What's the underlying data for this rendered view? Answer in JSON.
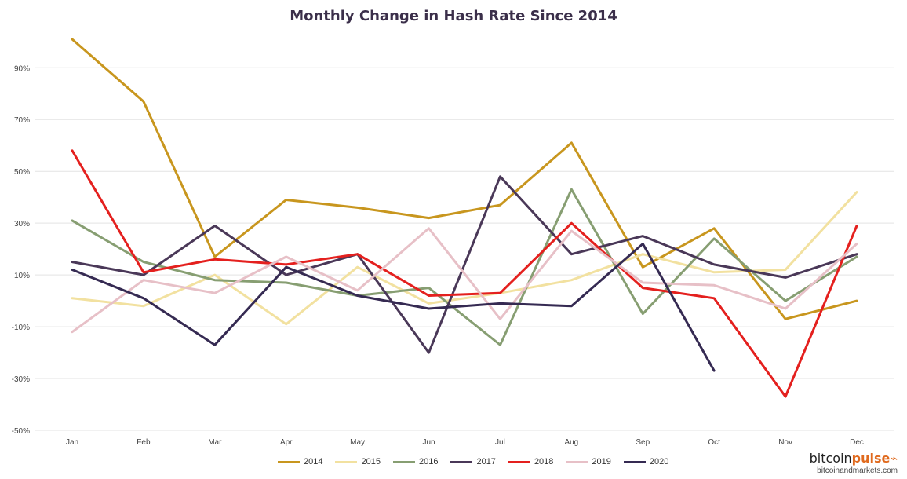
{
  "chart_data": {
    "type": "line",
    "title": "Monthly Change in Hash Rate Since 2014",
    "categories": [
      "Jan",
      "Feb",
      "Mar",
      "Apr",
      "May",
      "Jun",
      "Jul",
      "Aug",
      "Sep",
      "Oct",
      "Nov",
      "Dec"
    ],
    "yticks": [
      -50,
      -30,
      -10,
      10,
      30,
      50,
      70,
      90
    ],
    "ytick_labels": [
      "-50%",
      "-30%",
      "-10%",
      "10%",
      "30%",
      "50%",
      "70%",
      "90%"
    ],
    "ylim": [
      -50,
      101
    ],
    "grid": true,
    "legend_position": "bottom",
    "series": [
      {
        "name": "2014",
        "color": "#c8961e",
        "values": [
          101,
          77,
          17,
          39,
          36,
          32,
          37,
          61,
          13,
          28,
          -7,
          0
        ]
      },
      {
        "name": "2015",
        "color": "#f2e1a0",
        "values": [
          1,
          -2,
          10,
          -9,
          13,
          -1,
          3,
          8,
          18,
          11,
          12,
          42
        ]
      },
      {
        "name": "2016",
        "color": "#879e72",
        "values": [
          31,
          15,
          8,
          7,
          2,
          5,
          -17,
          43,
          -5,
          24,
          0,
          17
        ]
      },
      {
        "name": "2017",
        "color": "#4a3858",
        "values": [
          15,
          10,
          29,
          10,
          18,
          -20,
          48,
          18,
          25,
          14,
          9,
          18
        ]
      },
      {
        "name": "2018",
        "color": "#e4201e",
        "values": [
          58,
          11,
          16,
          14,
          18,
          2,
          3,
          30,
          5,
          1,
          -37,
          29
        ]
      },
      {
        "name": "2019",
        "color": "#e7c0c7",
        "values": [
          -12,
          8,
          3,
          17,
          4,
          28,
          -7,
          27,
          7,
          6,
          -3,
          22
        ]
      },
      {
        "name": "2020",
        "color": "#352a52",
        "values": [
          12,
          1,
          -17,
          13,
          2,
          -3,
          -1,
          -2,
          22,
          -27,
          null,
          null
        ]
      }
    ]
  },
  "brand": {
    "logo_main": "bitcoin",
    "logo_accent": "pulse",
    "site": "bitcoinandmarkets.com"
  }
}
